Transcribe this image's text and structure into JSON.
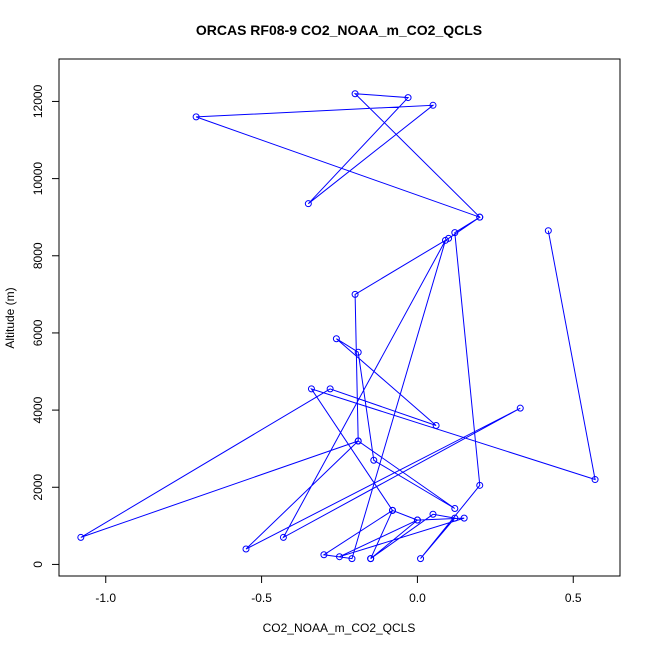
{
  "chart_data": {
    "type": "line",
    "title": "ORCAS RF08-9 CO2_NOAA_m_CO2_QCLS",
    "xlabel": "CO2_NOAA_m_CO2_QCLS",
    "ylabel": "Altitude (m)",
    "xlim": [
      -1.15,
      0.65
    ],
    "ylim": [
      -300,
      13100
    ],
    "xticks": [
      -1.0,
      -0.5,
      0.0,
      0.5
    ],
    "xtick_labels": [
      "-1.0",
      "-0.5",
      "0.0",
      "0.5"
    ],
    "yticks": [
      0,
      2000,
      4000,
      6000,
      8000,
      10000,
      12000
    ],
    "ytick_labels": [
      "0",
      "2000",
      "4000",
      "6000",
      "8000",
      "10000",
      "12000"
    ],
    "grid": false,
    "legend": "none",
    "color": "#0000ff",
    "series": [
      {
        "x": [
          0.42,
          0.57,
          -0.34,
          -0.08,
          -0.15,
          0.0,
          0.15,
          -0.25,
          0.0,
          -0.08,
          -0.3,
          -0.21,
          0.09,
          -0.43,
          0.33,
          -0.55,
          -0.19,
          -1.08,
          -0.28,
          0.06,
          -0.26,
          -0.19,
          -0.14,
          0.12,
          -0.19,
          -0.2,
          0.1,
          0.2,
          -0.2,
          -0.03,
          -0.35,
          0.05,
          -0.71,
          0.2,
          0.12,
          0.2,
          0.01,
          0.12,
          0.05,
          -0.15
        ],
        "y": [
          8650,
          2200,
          4550,
          1400,
          150,
          1150,
          1200,
          200,
          1150,
          1400,
          250,
          150,
          8400,
          700,
          4050,
          400,
          3200,
          700,
          4550,
          3600,
          5850,
          5500,
          2700,
          1450,
          3200,
          7000,
          8450,
          9000,
          12200,
          12100,
          9350,
          11900,
          11600,
          9000,
          8600,
          2050,
          150,
          1200,
          1300,
          150
        ]
      }
    ]
  }
}
